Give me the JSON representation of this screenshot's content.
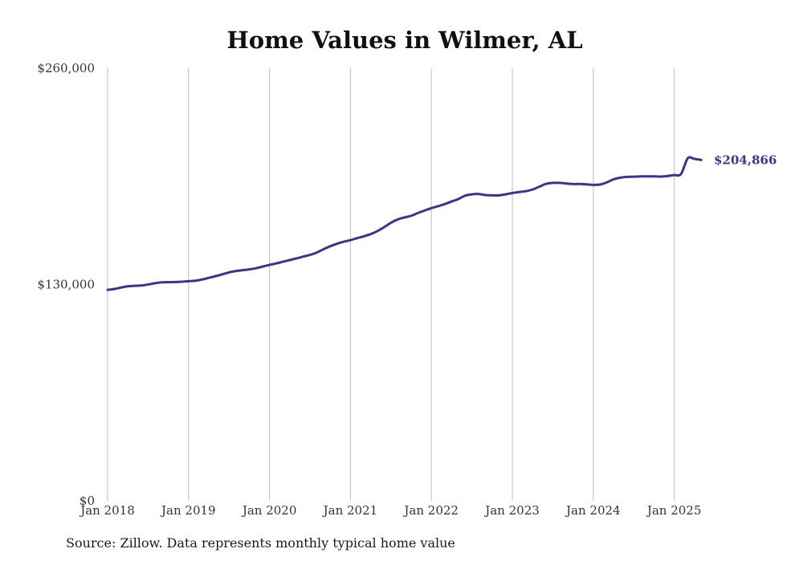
{
  "chart_data": {
    "type": "line",
    "title": "Home Values in Wilmer, AL",
    "xlabel": "",
    "ylabel": "",
    "source": "Source: Zillow. Data represents monthly typical home value",
    "ylim": [
      0,
      260000
    ],
    "y_ticks": [
      {
        "value": 0,
        "label": "$0"
      },
      {
        "value": 130000,
        "label": "$130,000"
      },
      {
        "value": 260000,
        "label": "$260,000"
      }
    ],
    "x_ticks": [
      {
        "value": "2018-01",
        "label": "Jan 2018"
      },
      {
        "value": "2019-01",
        "label": "Jan 2019"
      },
      {
        "value": "2020-01",
        "label": "Jan 2020"
      },
      {
        "value": "2021-01",
        "label": "Jan 2021"
      },
      {
        "value": "2022-01",
        "label": "Jan 2022"
      },
      {
        "value": "2023-01",
        "label": "Jan 2023"
      },
      {
        "value": "2024-01",
        "label": "Jan 2024"
      },
      {
        "value": "2025-01",
        "label": "Jan 2025"
      }
    ],
    "x_range": [
      "2018-01",
      "2025-05"
    ],
    "grid": "vertical",
    "line_color": "#3b3393",
    "end_label": "$204,866",
    "series": [
      {
        "x": [
          "2018-01",
          "2018-02",
          "2018-03",
          "2018-04",
          "2018-05",
          "2018-06",
          "2018-07",
          "2018-08",
          "2018-09",
          "2018-10",
          "2018-11",
          "2018-12",
          "2019-01",
          "2019-02",
          "2019-03",
          "2019-04",
          "2019-05",
          "2019-06",
          "2019-07",
          "2019-08",
          "2019-09",
          "2019-10",
          "2019-11",
          "2019-12",
          "2020-01",
          "2020-02",
          "2020-03",
          "2020-04",
          "2020-05",
          "2020-06",
          "2020-07",
          "2020-08",
          "2020-09",
          "2020-10",
          "2020-11",
          "2020-12",
          "2021-01",
          "2021-02",
          "2021-03",
          "2021-04",
          "2021-05",
          "2021-06",
          "2021-07",
          "2021-08",
          "2021-09",
          "2021-10",
          "2021-11",
          "2021-12",
          "2022-01",
          "2022-02",
          "2022-03",
          "2022-04",
          "2022-05",
          "2022-06",
          "2022-07",
          "2022-08",
          "2022-09",
          "2022-10",
          "2022-11",
          "2022-12",
          "2023-01",
          "2023-02",
          "2023-03",
          "2023-04",
          "2023-05",
          "2023-06",
          "2023-07",
          "2023-08",
          "2023-09",
          "2023-10",
          "2023-11",
          "2023-12",
          "2024-01",
          "2024-02",
          "2024-03",
          "2024-04",
          "2024-05",
          "2024-06",
          "2024-07",
          "2024-08",
          "2024-09",
          "2024-10",
          "2024-11",
          "2024-12",
          "2025-01",
          "2025-02",
          "2025-03",
          "2025-04",
          "2025-05"
        ],
        "values": [
          126800,
          127300,
          128200,
          128900,
          129200,
          129400,
          130000,
          130800,
          131300,
          131400,
          131500,
          131700,
          132000,
          132300,
          133000,
          134000,
          135000,
          136100,
          137300,
          138100,
          138600,
          139100,
          139800,
          140800,
          141800,
          142700,
          143700,
          144700,
          145700,
          146800,
          147800,
          149200,
          151200,
          153000,
          154500,
          155700,
          156700,
          157900,
          159000,
          160300,
          162100,
          164500,
          167100,
          169100,
          170300,
          171300,
          173000,
          174500,
          175900,
          177100,
          178400,
          179900,
          181400,
          183400,
          184200,
          184400,
          183800,
          183600,
          183600,
          184200,
          185000,
          185600,
          186100,
          187100,
          188800,
          190500,
          191100,
          191100,
          190700,
          190400,
          190400,
          190200,
          189900,
          190100,
          191400,
          193200,
          194200,
          194700,
          194800,
          195000,
          195000,
          195000,
          194900,
          195200,
          195800,
          196400,
          205866,
          205500,
          204866
        ]
      }
    ]
  }
}
